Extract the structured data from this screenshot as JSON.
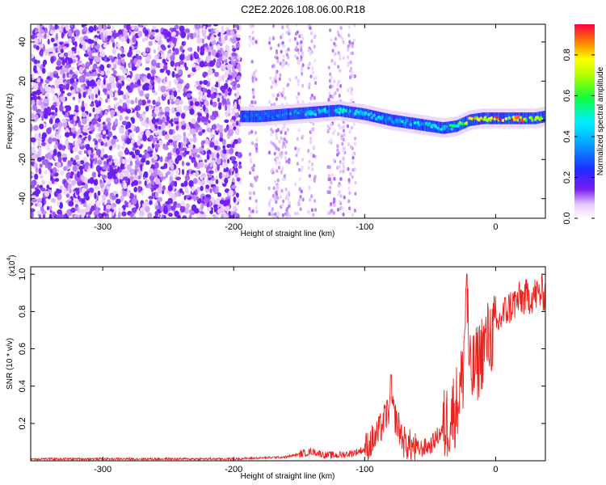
{
  "title": "C2E2.2026.108.06.00.R18",
  "colors": {
    "snr_line": "#e8231f",
    "background": "#ffffff",
    "axis": "#000000"
  },
  "chart_data": [
    {
      "type": "heatmap",
      "name": "spectrogram",
      "xlabel": "Height of straight line (km)",
      "ylabel": "Frequency (Hz)",
      "xlim": [
        -355,
        38
      ],
      "ylim": [
        -50,
        49
      ],
      "x_ticks": [
        -300,
        -200,
        -100,
        0
      ],
      "x_tick_labels": [
        "-300",
        "-200",
        "-100",
        "0"
      ],
      "y_ticks": [
        -40,
        -20,
        0,
        20,
        40
      ],
      "y_tick_labels": [
        "-40",
        "-20",
        "0",
        "20",
        "40"
      ],
      "colorbar": {
        "label": "Normalized spectral amplitude",
        "range": [
          0.0,
          0.95
        ],
        "ticks": [
          0.0,
          0.2,
          0.4,
          0.6,
          0.8
        ],
        "tick_labels": [
          "0.0",
          "0.2",
          "0.4",
          "0.6",
          "0.8"
        ],
        "colormap": "rainbow-white-purple-blue-cyan-green-yellow-red"
      },
      "signal_track": {
        "x": [
          -195,
          -180,
          -160,
          -140,
          -120,
          -100,
          -80,
          -60,
          -40,
          -30,
          -20,
          -10,
          0,
          10,
          20,
          30,
          38
        ],
        "freq_hz": [
          2,
          2,
          3,
          4,
          5,
          3,
          0,
          -2,
          -4,
          -3,
          0,
          1,
          1,
          1,
          1,
          1,
          2
        ],
        "amplitude": [
          0.35,
          0.3,
          0.35,
          0.45,
          0.5,
          0.45,
          0.4,
          0.45,
          0.5,
          0.6,
          0.75,
          0.85,
          0.9,
          0.9,
          0.85,
          0.8,
          0.7
        ]
      },
      "noise_region_x": [
        -355,
        -195
      ]
    },
    {
      "type": "line",
      "name": "snr",
      "xlabel": "Height of straight line (km)",
      "ylabel": "SNR (10 * v/v)",
      "y_scale_label": "(x10",
      "y_scale_exp": "4",
      "xlim": [
        -355,
        38
      ],
      "ylim": [
        0,
        1.04
      ],
      "x_ticks": [
        -300,
        -200,
        -100,
        0
      ],
      "x_tick_labels": [
        "-300",
        "-200",
        "-100",
        "0"
      ],
      "y_ticks": [
        0.2,
        0.4,
        0.6,
        0.8,
        1.0
      ],
      "y_tick_labels": [
        "0.2",
        "0.4",
        "0.6",
        "0.8",
        "1.0"
      ],
      "series": [
        {
          "name": "SNR",
          "x": [
            -355,
            -300,
            -250,
            -200,
            -160,
            -140,
            -130,
            -120,
            -110,
            -100,
            -90,
            -80,
            -75,
            -70,
            -60,
            -50,
            -40,
            -30,
            -25,
            -22,
            -20,
            -15,
            -10,
            -5,
            0,
            5,
            10,
            15,
            20,
            25,
            30,
            38
          ],
          "y": [
            0.01,
            0.01,
            0.01,
            0.01,
            0.02,
            0.05,
            0.03,
            0.03,
            0.04,
            0.06,
            0.14,
            0.3,
            0.2,
            0.1,
            0.06,
            0.08,
            0.17,
            0.3,
            0.45,
            1.0,
            0.45,
            0.5,
            0.6,
            0.66,
            0.7,
            0.78,
            0.82,
            0.85,
            0.87,
            0.88,
            0.89,
            0.9
          ]
        }
      ]
    }
  ]
}
